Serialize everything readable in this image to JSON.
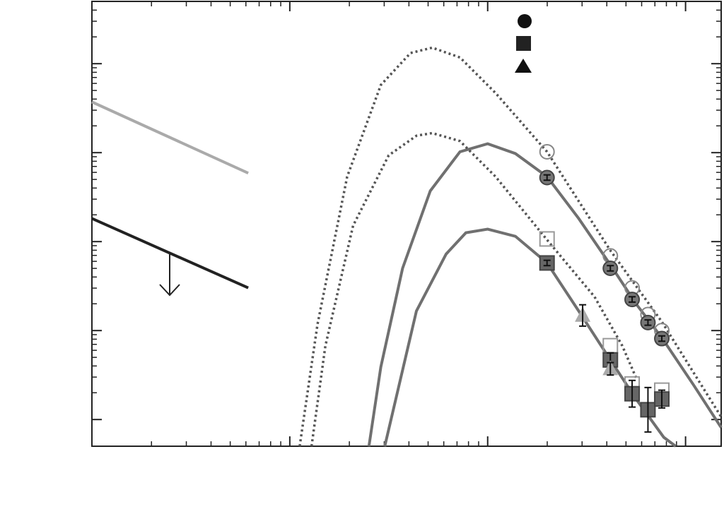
{
  "chart_data": {
    "type": "scatter",
    "xlim": [
      0,
      3.18
    ],
    "ylim": [
      0,
      5.0
    ],
    "xticks": [
      0,
      1,
      2,
      3
    ],
    "yticks": [
      0.3,
      1.3,
      2.3,
      3.3,
      4.3
    ],
    "log_scale": true,
    "minor_ticks": true,
    "curves": [
      {
        "style": "solid",
        "color": "#707070",
        "x": [
          1.4,
          1.46,
          1.57,
          1.71,
          1.86,
          2.0,
          2.14,
          2.3,
          2.46,
          2.62,
          2.75,
          2.88,
          3.04,
          3.18
        ],
        "values": [
          0,
          0.89,
          2.0,
          2.87,
          3.31,
          3.4,
          3.29,
          3.03,
          2.56,
          2.04,
          1.6,
          1.22,
          0.69,
          0.21
        ]
      },
      {
        "style": "solid",
        "color": "#707070",
        "x": [
          1.48,
          1.54,
          1.64,
          1.79,
          1.89,
          2.0,
          2.14,
          2.3,
          2.46,
          2.62,
          2.75,
          2.89,
          2.95
        ],
        "values": [
          0,
          0.57,
          1.52,
          2.16,
          2.4,
          2.44,
          2.36,
          2.06,
          1.52,
          0.97,
          0.53,
          0.1,
          0
        ]
      },
      {
        "style": "dotted",
        "color": "#555555",
        "x": [
          1.05,
          1.14,
          1.29,
          1.46,
          1.61,
          1.72,
          1.86,
          2.04,
          2.3,
          2.62,
          2.88,
          3.18
        ],
        "values": [
          0,
          1.37,
          3.03,
          4.06,
          4.42,
          4.48,
          4.37,
          3.97,
          3.31,
          2.2,
          1.4,
          0.33
        ]
      },
      {
        "style": "dotted",
        "color": "#555555",
        "x": [
          1.11,
          1.18,
          1.32,
          1.5,
          1.64,
          1.72,
          1.86,
          2.04,
          2.3,
          2.54,
          2.68,
          2.75
        ],
        "values": [
          0,
          1.13,
          2.48,
          3.27,
          3.49,
          3.52,
          3.43,
          3.03,
          2.32,
          1.68,
          1.13,
          0.77
        ]
      },
      {
        "style": "solid",
        "color": "#aaaaaa",
        "x": [
          0,
          0.79
        ],
        "values": [
          3.87,
          3.07
        ]
      },
      {
        "style": "solid",
        "color": "#222222",
        "x": [
          0,
          0.79
        ],
        "values": [
          2.56,
          1.78
        ]
      }
    ],
    "series": [
      {
        "marker": "circle",
        "filled": false,
        "color": "#888888",
        "x": [
          2.3,
          2.62,
          2.73,
          2.81,
          2.88
        ],
        "values": [
          3.31,
          2.14,
          1.78,
          1.48,
          1.3
        ]
      },
      {
        "marker": "circle",
        "filled": true,
        "color": "#777777",
        "x": [
          2.3,
          2.62,
          2.73,
          2.81,
          2.88
        ],
        "values": [
          3.02,
          2.0,
          1.65,
          1.39,
          1.21
        ],
        "errors": [
          0.03,
          0.03,
          0.03,
          0.03,
          0.03
        ]
      },
      {
        "marker": "square",
        "filled": false,
        "color": "#999999",
        "x": [
          2.3,
          2.62,
          2.73,
          2.88
        ],
        "values": [
          2.33,
          1.13,
          0.7,
          0.63
        ]
      },
      {
        "marker": "square",
        "filled": true,
        "color": "#666666",
        "x": [
          2.3,
          2.62,
          2.73,
          2.81,
          2.88
        ],
        "values": [
          2.06,
          0.97,
          0.59,
          0.41,
          0.53
        ],
        "errors": [
          0.03,
          0.08,
          0.15,
          0.25,
          0.1
        ]
      },
      {
        "marker": "triangle",
        "filled": true,
        "color": "#aaaaaa",
        "x": [
          2.48,
          2.62
        ],
        "values": [
          1.47,
          0.87
        ],
        "errors": [
          0.12,
          0.07
        ]
      }
    ]
  }
}
